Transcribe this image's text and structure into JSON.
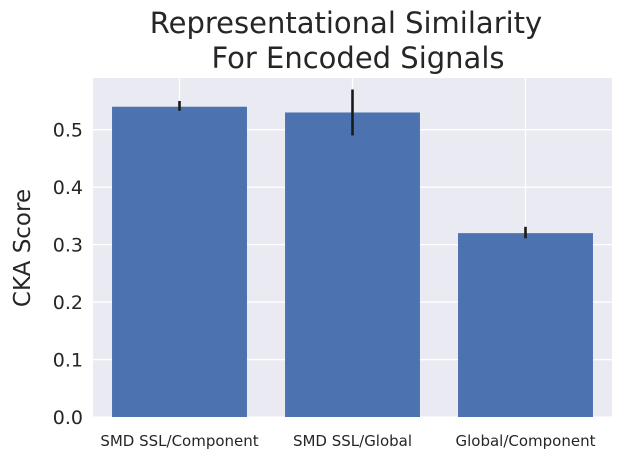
{
  "chart_data": {
    "type": "bar",
    "title_lines": [
      "Representational Similarity",
      "For Encoded Signals"
    ],
    "xlabel": "",
    "ylabel": "CKA Score",
    "categories": [
      "SMD SSL/Component",
      "SMD SSL/Global",
      "Global/Component"
    ],
    "values": [
      0.54,
      0.53,
      0.32
    ],
    "error_low": [
      0.533,
      0.49,
      0.311
    ],
    "error_high": [
      0.55,
      0.57,
      0.331
    ],
    "ylim": [
      0.0,
      0.59
    ],
    "yticks": [
      0.0,
      0.1,
      0.2,
      0.3,
      0.4,
      0.5
    ],
    "ytick_labels": [
      "0.0",
      "0.1",
      "0.2",
      "0.3",
      "0.4",
      "0.5"
    ],
    "grid": true,
    "colors": {
      "bar": "#4c72b0",
      "background": "#eaeaf2",
      "grid": "#ffffff",
      "error": "#1a1a1a"
    }
  }
}
